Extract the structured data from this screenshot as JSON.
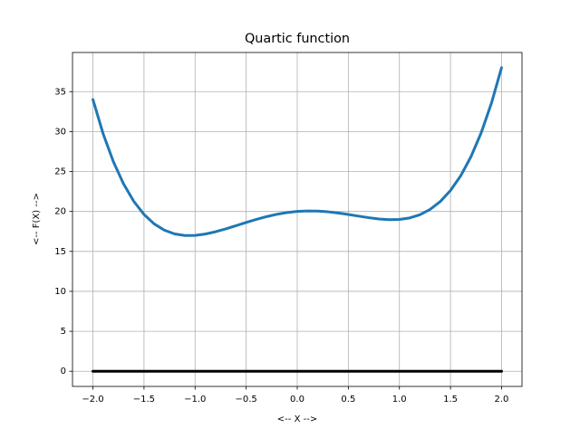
{
  "chart_data": {
    "type": "line",
    "title": "Quartic function",
    "xlabel": "<-- X -->",
    "ylabel": "<-- F(X) -->",
    "x": [
      -2.0,
      -1.9,
      -1.8,
      -1.7,
      -1.6,
      -1.5,
      -1.4,
      -1.3,
      -1.2,
      -1.1,
      -1.0,
      -0.9,
      -0.8,
      -0.7,
      -0.6,
      -0.5,
      -0.4,
      -0.3,
      -0.2,
      -0.1,
      0.0,
      0.1,
      0.2,
      0.3,
      0.4,
      0.5,
      0.6,
      0.7,
      0.8,
      0.9,
      1.0,
      1.1,
      1.2,
      1.3,
      1.4,
      1.5,
      1.6,
      1.7,
      1.8,
      1.9,
      2.0
    ],
    "series": [
      {
        "color": "#1f77b4",
        "values": [
          34,
          29.7242,
          26.2352,
          23.4442,
          21.2672,
          19.625,
          18.4432,
          17.6522,
          17.1872,
          16.9882,
          17,
          17.1722,
          17.4592,
          17.8202,
          18.2192,
          18.625,
          19.0112,
          19.3562,
          19.6432,
          19.8602,
          20,
          20.0602,
          20.0432,
          19.9562,
          19.8112,
          19.625,
          19.4192,
          19.2202,
          19.0592,
          18.9722,
          19,
          19.1882,
          19.5872,
          20.2522,
          21.2432,
          22.625,
          24.4672,
          26.8442,
          29.8352,
          33.5242,
          38
        ]
      },
      {
        "color": "#000000",
        "values": [
          0,
          0,
          0,
          0,
          0,
          0,
          0,
          0,
          0,
          0,
          0,
          0,
          0,
          0,
          0,
          0,
          0,
          0,
          0,
          0,
          0,
          0,
          0,
          0,
          0,
          0,
          0,
          0,
          0,
          0,
          0,
          0,
          0,
          0,
          0,
          0,
          0,
          0,
          0,
          0,
          0
        ]
      }
    ],
    "xlim": [
      -2.2,
      2.2
    ],
    "ylim": [
      -1.9,
      39.9
    ],
    "xticks": [
      {
        "value": -2.0,
        "label": "−2.0"
      },
      {
        "value": -1.5,
        "label": "−1.5"
      },
      {
        "value": -1.0,
        "label": "−1.0"
      },
      {
        "value": -0.5,
        "label": "−0.5"
      },
      {
        "value": 0.0,
        "label": "0.0"
      },
      {
        "value": 0.5,
        "label": "0.5"
      },
      {
        "value": 1.0,
        "label": "1.0"
      },
      {
        "value": 1.5,
        "label": "1.5"
      },
      {
        "value": 2.0,
        "label": "2.0"
      }
    ],
    "yticks": [
      0,
      5,
      10,
      15,
      20,
      25,
      30,
      35
    ],
    "grid": true
  }
}
